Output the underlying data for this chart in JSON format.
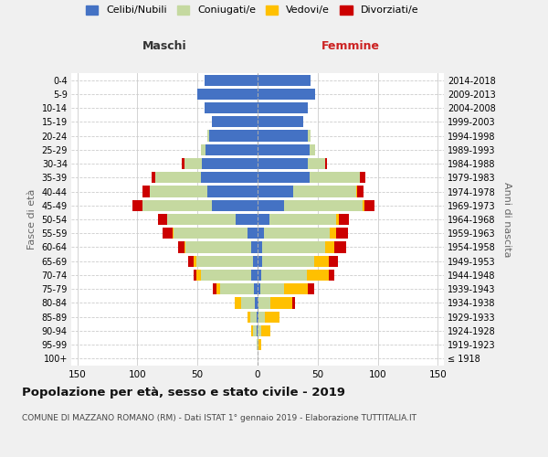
{
  "age_groups": [
    "100+",
    "95-99",
    "90-94",
    "85-89",
    "80-84",
    "75-79",
    "70-74",
    "65-69",
    "60-64",
    "55-59",
    "50-54",
    "45-49",
    "40-44",
    "35-39",
    "30-34",
    "25-29",
    "20-24",
    "15-19",
    "10-14",
    "5-9",
    "0-4"
  ],
  "birth_years": [
    "≤ 1918",
    "1919-1923",
    "1924-1928",
    "1929-1933",
    "1934-1938",
    "1939-1943",
    "1944-1948",
    "1949-1953",
    "1954-1958",
    "1959-1963",
    "1964-1968",
    "1969-1973",
    "1974-1978",
    "1979-1983",
    "1984-1988",
    "1989-1993",
    "1994-1998",
    "1999-2003",
    "2004-2008",
    "2009-2013",
    "2014-2018"
  ],
  "maschi": {
    "celibi": [
      0,
      0,
      1,
      1,
      2,
      3,
      5,
      4,
      5,
      8,
      18,
      38,
      42,
      47,
      46,
      43,
      40,
      38,
      44,
      50,
      44
    ],
    "coniugati": [
      0,
      1,
      3,
      5,
      12,
      28,
      42,
      47,
      55,
      62,
      57,
      58,
      48,
      38,
      15,
      4,
      2,
      0,
      0,
      0,
      0
    ],
    "vedovi": [
      0,
      0,
      1,
      2,
      5,
      3,
      4,
      2,
      1,
      1,
      0,
      0,
      0,
      0,
      0,
      0,
      0,
      0,
      0,
      0,
      0
    ],
    "divorziati": [
      0,
      0,
      0,
      0,
      0,
      3,
      2,
      5,
      5,
      8,
      8,
      8,
      6,
      3,
      2,
      0,
      0,
      0,
      0,
      0,
      0
    ]
  },
  "femmine": {
    "nubili": [
      0,
      0,
      0,
      1,
      1,
      2,
      3,
      4,
      4,
      5,
      10,
      22,
      30,
      43,
      42,
      43,
      42,
      38,
      42,
      48,
      44
    ],
    "coniugate": [
      0,
      1,
      3,
      5,
      10,
      20,
      38,
      43,
      52,
      55,
      55,
      65,
      52,
      42,
      14,
      5,
      2,
      0,
      0,
      0,
      0
    ],
    "vedove": [
      0,
      2,
      8,
      12,
      18,
      20,
      18,
      12,
      8,
      5,
      3,
      2,
      1,
      0,
      0,
      0,
      0,
      0,
      0,
      0,
      0
    ],
    "divorziate": [
      0,
      0,
      0,
      0,
      2,
      5,
      5,
      8,
      10,
      10,
      8,
      8,
      5,
      5,
      2,
      0,
      0,
      0,
      0,
      0,
      0
    ]
  },
  "colors": {
    "celibi_nubili": "#4472c4",
    "coniugati": "#c5d9a0",
    "vedovi": "#ffc000",
    "divorziati": "#cc0000"
  },
  "xlim": 155,
  "title": "Popolazione per età, sesso e stato civile - 2019",
  "subtitle": "COMUNE DI MAZZANO ROMANO (RM) - Dati ISTAT 1° gennaio 2019 - Elaborazione TUTTITALIA.IT",
  "ylabel_left": "Fasce di età",
  "ylabel_right": "Anni di nascita",
  "xlabel_left": "Maschi",
  "xlabel_right": "Femmine",
  "bg_color": "#f0f0f0",
  "plot_bg_color": "#ffffff",
  "grid_color": "#cccccc"
}
